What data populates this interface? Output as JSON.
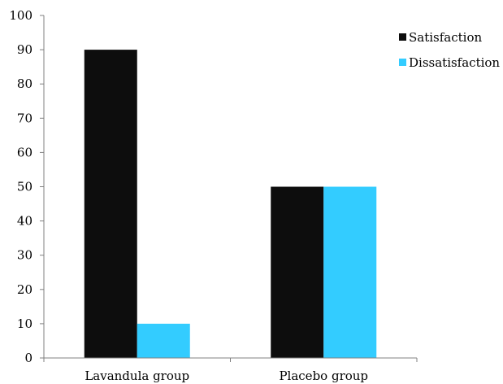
{
  "chart_data": {
    "type": "bar",
    "title": "",
    "xlabel": "",
    "ylabel": "",
    "categories": [
      "Lavandula group",
      "Placebo group"
    ],
    "series": [
      {
        "name": "Satisfaction",
        "values": [
          90,
          50
        ],
        "color": "#0d0d0d"
      },
      {
        "name": "Dissatisfaction",
        "values": [
          10,
          50
        ],
        "color": "#33ccff"
      }
    ],
    "ylim": [
      0,
      100
    ],
    "yticks": [
      0,
      10,
      20,
      30,
      40,
      50,
      60,
      70,
      80,
      90,
      100
    ],
    "grid": false,
    "legend_position": "top-right"
  }
}
